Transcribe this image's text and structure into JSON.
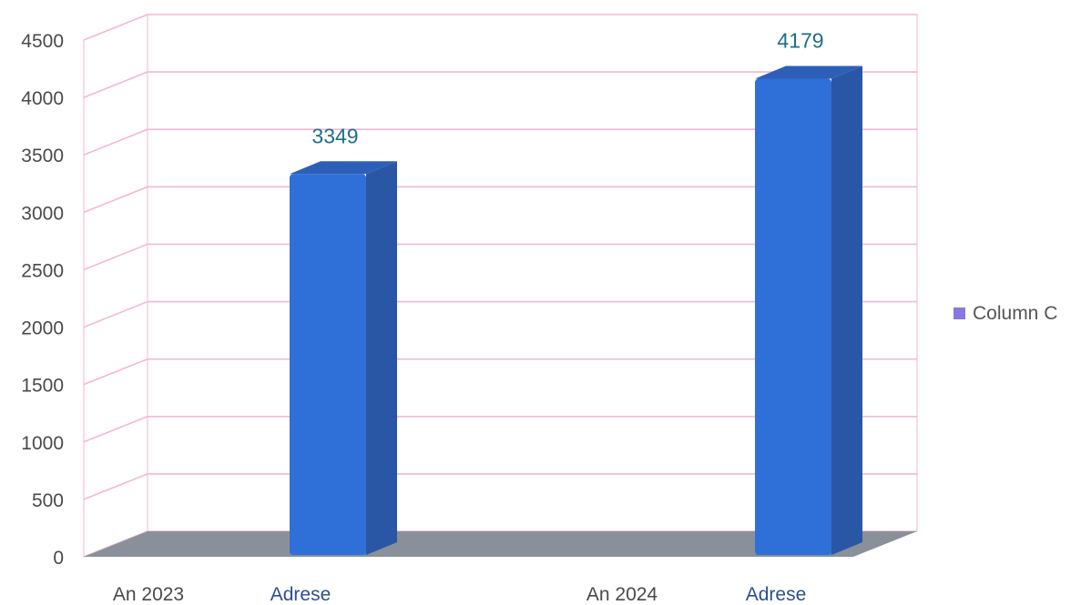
{
  "chart_data": {
    "type": "bar",
    "categories": [
      "An 2023",
      "Adrese",
      "An 2024",
      "Adrese"
    ],
    "series": [
      {
        "name": "Column C",
        "values": [
          null,
          3349,
          null,
          4179
        ]
      }
    ],
    "data_labels": [
      "",
      "3349",
      "",
      "4179"
    ],
    "yticks": [
      0,
      500,
      1000,
      1500,
      2000,
      2500,
      3000,
      3500,
      4000,
      4500
    ],
    "ylim": [
      0,
      4500
    ],
    "grid": true,
    "legend": "right",
    "style": "3d-column",
    "colors": {
      "bar_front": "#2f6fd8",
      "bar_side": "#2a56a6",
      "bar_top": "#2e5fb8",
      "bar_base": "#19a7a0",
      "gridline": "#f3b7d5",
      "floor": "#8a909a",
      "legend_swatch": "#8a78e0",
      "label_dark": "#4a4a4a",
      "label_blue": "#2b4f8f"
    }
  }
}
